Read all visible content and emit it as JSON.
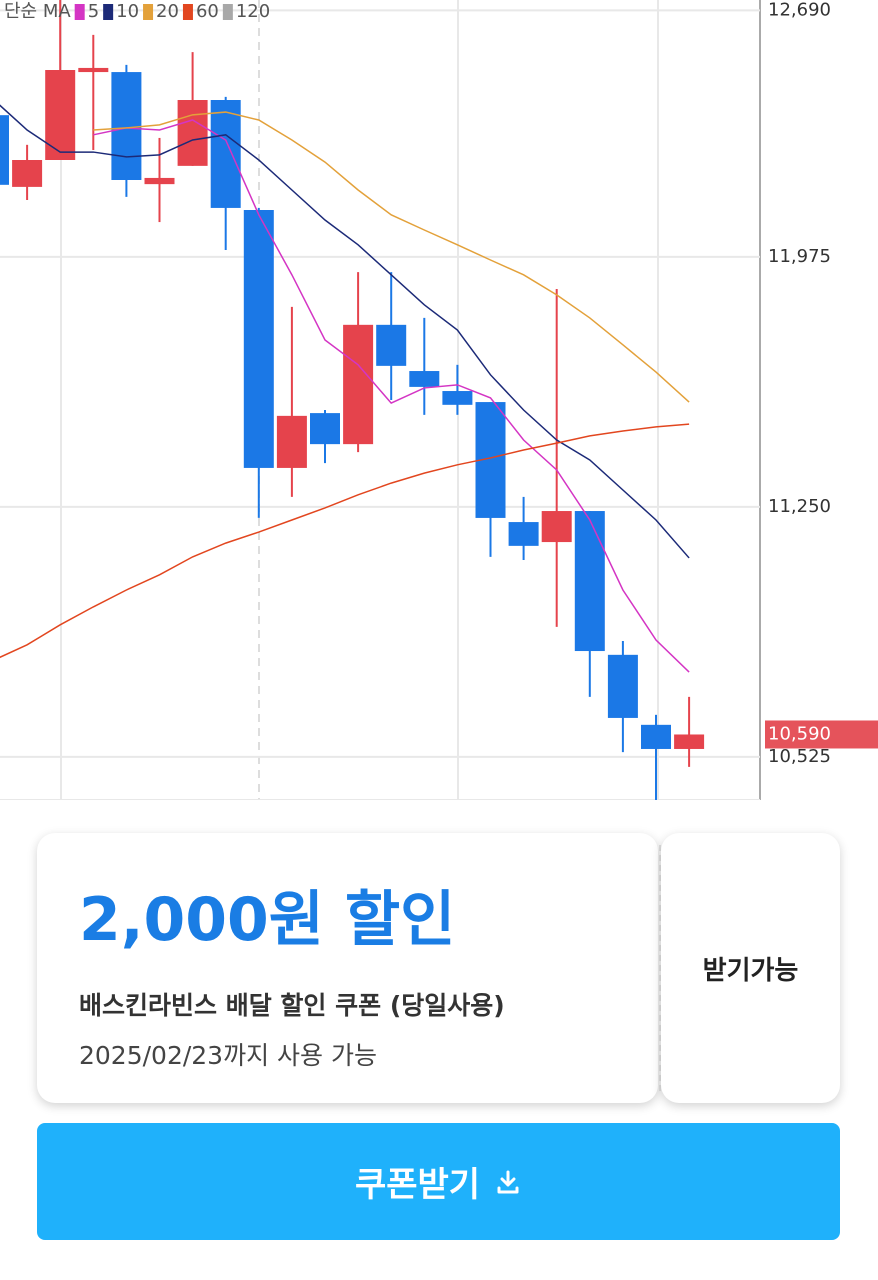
{
  "chart_data": {
    "type": "candlestick",
    "legend_title": "단순 MA",
    "open": [
      12386,
      12178,
      12256,
      12511,
      12511,
      12186,
      12239,
      12430,
      12111,
      11363,
      11522,
      11432,
      11778,
      11644,
      11586,
      11554,
      11206,
      11148,
      11238,
      10821,
      10618,
      10548
    ],
    "high": [
      12416,
      12300,
      12720,
      12619,
      12532,
      12320,
      12569,
      12439,
      12117,
      11830,
      11531,
      11931,
      11931,
      11798,
      11662,
      11554,
      11279,
      11882,
      11238,
      10861,
      10647,
      10699
    ],
    "low": [
      12169,
      12140,
      12256,
      12285,
      12149,
      12076,
      12239,
      11995,
      11218,
      11279,
      11377,
      11409,
      11560,
      11517,
      11517,
      11105,
      11096,
      10902,
      10699,
      10539,
      10400,
      10496
    ],
    "close": [
      12184,
      12256,
      12517,
      12523,
      12198,
      12204,
      12430,
      12117,
      11363,
      11514,
      11432,
      11778,
      11659,
      11598,
      11546,
      11218,
      11137,
      11238,
      10832,
      10638,
      10548,
      10590
    ],
    "up_color": "#e5434c",
    "down_color": "#1b78e6",
    "series": [
      {
        "name": "5",
        "color": "#d435c4",
        "values": [
          null,
          null,
          null,
          12329,
          12349,
          12343,
          12372,
          12314,
          12097,
          11923,
          11734,
          11662,
          11551,
          11595,
          11604,
          11566,
          11444,
          11357,
          11212,
          11009,
          10864,
          10771
        ]
      },
      {
        "name": "10",
        "color": "#1c2a78",
        "values": [
          12430,
          12343,
          12279,
          12279,
          12265,
          12271,
          12314,
          12329,
          12256,
          12169,
          12082,
          12010,
          11923,
          11836,
          11763,
          11633,
          11531,
          11444,
          11386,
          11299,
          11212,
          11102
        ]
      },
      {
        "name": "20",
        "color": "#e3a13a",
        "values": [
          null,
          null,
          null,
          12343,
          12349,
          12358,
          12387,
          12395,
          12372,
          12314,
          12250,
          12169,
          12097,
          12053,
          12010,
          11966,
          11923,
          11865,
          11798,
          11720,
          11641,
          11554
        ]
      },
      {
        "name": "60",
        "color": "#e2461f",
        "values": [
          10806,
          10850,
          10908,
          10960,
          11009,
          11053,
          11105,
          11145,
          11177,
          11212,
          11247,
          11285,
          11319,
          11348,
          11372,
          11392,
          11415,
          11435,
          11456,
          11470,
          11482,
          11490
        ]
      },
      {
        "name": "120",
        "color": "#a8a8a8",
        "values": [
          null,
          null,
          null,
          null,
          null,
          null,
          null,
          null,
          null,
          null,
          null,
          null,
          null,
          null,
          null,
          null,
          null,
          null,
          null,
          null,
          null,
          null
        ]
      }
    ],
    "ylim": [
      10400,
      12720
    ],
    "yticks": [
      {
        "value": 12690,
        "label": "12,690"
      },
      {
        "value": 11975,
        "label": "11,975"
      },
      {
        "value": 11250,
        "label": "11,250"
      },
      {
        "value": 10525,
        "label": "10,525"
      }
    ],
    "last_price": {
      "value": 10590,
      "label": "10,590"
    },
    "last_price_color": "#e5535b",
    "grid": true
  },
  "coupon": {
    "amount": "2,000원 할인",
    "name": "배스킨라빈스 배달 할인 쿠폰 (당일사용)",
    "expiry": "2025/02/23까지 사용 가능",
    "status": "받기가능",
    "button": "쿠폰받기"
  }
}
